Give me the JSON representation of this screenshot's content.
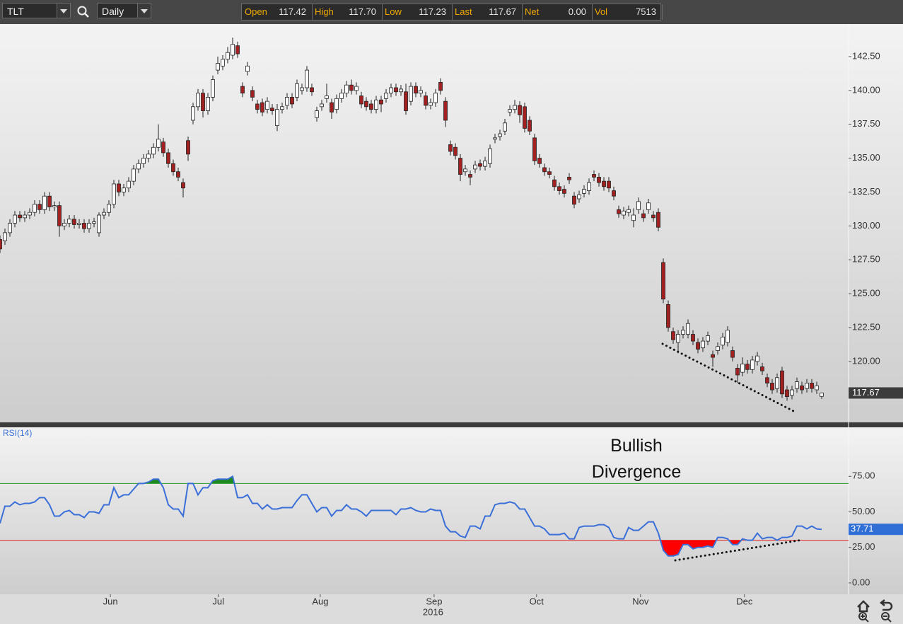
{
  "toolbar": {
    "symbol": "TLT",
    "interval": "Daily",
    "quote": [
      {
        "label": "Open",
        "value": "117.42"
      },
      {
        "label": "High",
        "value": "117.70"
      },
      {
        "label": "Low",
        "value": "117.23"
      },
      {
        "label": "Last",
        "value": "117.67"
      },
      {
        "label": "Net",
        "value": "0.00"
      },
      {
        "label": "Vol",
        "value": "7513"
      }
    ]
  },
  "chart_data": [
    {
      "type": "candlestick",
      "up_color": "#ffffff",
      "down_color": "#a32020",
      "ylim": [
        115.5,
        144.9
      ],
      "yticks": [
        {
          "value": 120,
          "label": "120.00"
        },
        {
          "value": 122.5,
          "label": "122.50"
        },
        {
          "value": 125,
          "label": "125.00"
        },
        {
          "value": 127.5,
          "label": "127.50"
        },
        {
          "value": 130,
          "label": "130.00"
        },
        {
          "value": 132.5,
          "label": "132.50"
        },
        {
          "value": 135,
          "label": "135.00"
        },
        {
          "value": 137.5,
          "label": "137.50"
        },
        {
          "value": 140,
          "label": "140.00"
        },
        {
          "value": 142.5,
          "label": "142.50"
        }
      ],
      "xticks": [
        {
          "value": 22.3,
          "label": "Jun"
        },
        {
          "value": 44.1,
          "label": "Jul"
        },
        {
          "value": 64.7,
          "label": "Aug"
        },
        {
          "value": 87.7,
          "label": "Sep"
        },
        {
          "value": 108.4,
          "label": "Oct"
        },
        {
          "value": 129.4,
          "label": "Nov"
        },
        {
          "value": 150.4,
          "label": "Dec"
        }
      ],
      "year_label": "2016",
      "ohlc": [
        [
          129.0,
          129.3,
          128.0,
          128.3
        ],
        [
          128.9,
          129.8,
          128.6,
          129.5
        ],
        [
          129.5,
          130.5,
          129.2,
          130.2
        ],
        [
          130.2,
          131.1,
          129.9,
          130.8
        ],
        [
          130.8,
          131.1,
          130.3,
          130.6
        ],
        [
          130.6,
          131.1,
          130.3,
          130.8
        ],
        [
          130.8,
          131.3,
          130.5,
          131.0
        ],
        [
          131.0,
          131.9,
          130.7,
          131.6
        ],
        [
          131.6,
          131.9,
          130.9,
          131.2
        ],
        [
          131.2,
          132.5,
          130.9,
          132.2
        ],
        [
          132.2,
          132.5,
          131.1,
          131.4
        ],
        [
          131.4,
          131.8,
          131.1,
          131.5
        ],
        [
          131.5,
          131.8,
          129.2,
          130.0
        ],
        [
          130.0,
          130.5,
          129.7,
          130.2
        ],
        [
          130.2,
          130.8,
          129.9,
          130.5
        ],
        [
          130.5,
          130.8,
          129.8,
          130.1
        ],
        [
          130.1,
          130.5,
          129.8,
          130.2
        ],
        [
          130.2,
          130.5,
          129.5,
          129.8
        ],
        [
          129.8,
          130.5,
          129.5,
          130.2
        ],
        [
          130.2,
          130.6,
          129.9,
          130.3
        ],
        [
          129.5,
          131.0,
          129.2,
          130.8
        ],
        [
          130.8,
          131.3,
          130.5,
          131.0
        ],
        [
          131.0,
          131.9,
          130.7,
          131.6
        ],
        [
          131.6,
          133.4,
          131.3,
          133.1
        ],
        [
          133.1,
          133.4,
          132.2,
          132.5
        ],
        [
          132.5,
          133.1,
          132.2,
          132.8
        ],
        [
          132.8,
          133.6,
          132.5,
          133.3
        ],
        [
          133.3,
          134.5,
          133.0,
          134.2
        ],
        [
          134.2,
          134.9,
          133.9,
          134.6
        ],
        [
          134.6,
          135.3,
          134.3,
          135.0
        ],
        [
          135.0,
          135.6,
          134.7,
          135.3
        ],
        [
          135.3,
          136.1,
          135.0,
          135.8
        ],
        [
          135.8,
          137.5,
          135.5,
          136.4
        ],
        [
          136.2,
          136.5,
          135.1,
          135.4
        ],
        [
          135.4,
          135.7,
          134.3,
          134.6
        ],
        [
          134.6,
          134.9,
          133.7,
          134.0
        ],
        [
          134.0,
          134.3,
          133.3,
          133.6
        ],
        [
          133.2,
          133.5,
          132.1,
          132.8
        ],
        [
          136.3,
          136.6,
          134.8,
          135.3
        ],
        [
          137.8,
          139.1,
          137.5,
          138.8
        ],
        [
          138.8,
          140.1,
          138.5,
          139.8
        ],
        [
          139.8,
          140.1,
          138.0,
          138.5
        ],
        [
          138.5,
          139.8,
          138.2,
          139.5
        ],
        [
          139.5,
          141.1,
          139.2,
          140.8
        ],
        [
          141.5,
          142.5,
          141.2,
          142.0
        ],
        [
          141.8,
          142.6,
          141.5,
          142.3
        ],
        [
          142.3,
          143.2,
          142.0,
          142.8
        ],
        [
          142.6,
          143.9,
          142.3,
          143.4
        ],
        [
          143.3,
          143.6,
          142.4,
          142.7
        ],
        [
          140.3,
          140.6,
          139.5,
          139.8
        ],
        [
          141.4,
          142.1,
          141.1,
          141.8
        ],
        [
          140.0,
          140.3,
          139.2,
          139.5
        ],
        [
          139.0,
          139.3,
          138.3,
          138.6
        ],
        [
          139.1,
          139.4,
          138.1,
          138.4
        ],
        [
          138.6,
          139.5,
          138.3,
          139.2
        ],
        [
          138.7,
          139.0,
          138.2,
          138.5
        ],
        [
          137.4,
          139.0,
          137.0,
          138.6
        ],
        [
          138.6,
          139.1,
          138.3,
          138.8
        ],
        [
          138.9,
          139.8,
          138.6,
          139.5
        ],
        [
          139.5,
          139.8,
          138.7,
          139.0
        ],
        [
          139.5,
          140.8,
          139.2,
          140.5
        ],
        [
          140.0,
          140.5,
          139.7,
          140.2
        ],
        [
          140.2,
          141.8,
          139.9,
          141.5
        ],
        [
          140.2,
          140.5,
          139.6,
          139.9
        ],
        [
          138.0,
          138.8,
          137.7,
          138.5
        ],
        [
          138.8,
          139.3,
          138.5,
          139.0
        ],
        [
          139.4,
          140.5,
          139.1,
          139.6
        ],
        [
          139.1,
          139.4,
          137.9,
          138.4
        ],
        [
          138.6,
          139.7,
          138.3,
          139.4
        ],
        [
          139.4,
          140.1,
          139.1,
          139.8
        ],
        [
          139.8,
          140.7,
          139.5,
          140.4
        ],
        [
          140.4,
          140.8,
          139.7,
          140.0
        ],
        [
          140.0,
          140.6,
          139.7,
          140.3
        ],
        [
          139.6,
          139.9,
          138.7,
          139.0
        ],
        [
          139.2,
          139.5,
          138.5,
          138.8
        ],
        [
          139.0,
          139.3,
          138.3,
          138.6
        ],
        [
          138.6,
          139.6,
          138.3,
          139.3
        ],
        [
          139.3,
          139.6,
          138.4,
          139.0
        ],
        [
          139.4,
          140.1,
          139.1,
          139.8
        ],
        [
          139.8,
          140.5,
          139.5,
          140.2
        ],
        [
          140.2,
          140.5,
          139.6,
          139.9
        ],
        [
          139.9,
          140.4,
          139.6,
          140.1
        ],
        [
          139.9,
          140.5,
          138.2,
          138.5
        ],
        [
          139.2,
          140.6,
          138.9,
          140.3
        ],
        [
          140.3,
          140.6,
          139.5,
          139.8
        ],
        [
          139.8,
          140.3,
          139.5,
          140.0
        ],
        [
          139.6,
          139.9,
          138.6,
          138.9
        ],
        [
          138.9,
          139.4,
          138.6,
          139.1
        ],
        [
          139.1,
          140.1,
          138.8,
          139.8
        ],
        [
          140.6,
          140.9,
          139.7,
          140.0
        ],
        [
          139.2,
          139.5,
          137.3,
          137.8
        ],
        [
          136.0,
          136.3,
          135.2,
          135.5
        ],
        [
          135.8,
          136.1,
          134.9,
          135.2
        ],
        [
          135.0,
          135.3,
          133.3,
          133.8
        ],
        [
          134.0,
          134.5,
          133.7,
          134.2
        ],
        [
          133.8,
          134.1,
          133.0,
          133.6
        ],
        [
          134.2,
          134.8,
          133.9,
          134.5
        ],
        [
          134.6,
          134.9,
          134.1,
          134.4
        ],
        [
          134.4,
          135.1,
          134.1,
          134.8
        ],
        [
          134.6,
          136.0,
          134.3,
          135.7
        ],
        [
          136.4,
          136.8,
          136.1,
          136.5
        ],
        [
          136.6,
          137.1,
          136.3,
          136.8
        ],
        [
          137.0,
          137.9,
          136.7,
          137.6
        ],
        [
          138.4,
          138.9,
          138.1,
          138.6
        ],
        [
          138.6,
          139.3,
          138.3,
          138.9
        ],
        [
          138.9,
          139.2,
          137.6,
          138.2
        ],
        [
          138.8,
          139.1,
          136.9,
          137.2
        ],
        [
          137.8,
          138.1,
          136.7,
          137.0
        ],
        [
          136.5,
          136.8,
          134.5,
          134.8
        ],
        [
          135.0,
          135.3,
          134.3,
          134.6
        ],
        [
          134.3,
          134.6,
          133.7,
          134.0
        ],
        [
          134.0,
          134.3,
          133.5,
          133.8
        ],
        [
          133.4,
          133.7,
          132.6,
          132.9
        ],
        [
          132.9,
          133.2,
          132.3,
          132.6
        ],
        [
          132.7,
          133.0,
          132.1,
          132.4
        ],
        [
          133.6,
          133.9,
          133.1,
          133.4
        ],
        [
          132.2,
          132.5,
          131.3,
          131.6
        ],
        [
          132.0,
          132.6,
          131.7,
          132.3
        ],
        [
          132.4,
          133.0,
          132.1,
          132.7
        ],
        [
          132.6,
          133.5,
          132.3,
          133.2
        ],
        [
          133.8,
          134.1,
          133.3,
          133.6
        ],
        [
          133.6,
          133.9,
          132.9,
          133.2
        ],
        [
          133.3,
          133.6,
          132.6,
          132.9
        ],
        [
          133.3,
          133.6,
          132.5,
          132.8
        ],
        [
          132.6,
          132.9,
          131.9,
          132.2
        ],
        [
          131.2,
          131.5,
          130.6,
          130.9
        ],
        [
          130.8,
          131.4,
          130.5,
          131.1
        ],
        [
          131.0,
          131.5,
          130.7,
          131.2
        ],
        [
          130.4,
          131.3,
          129.9,
          130.8
        ],
        [
          131.2,
          132.1,
          130.9,
          131.8
        ],
        [
          130.9,
          131.2,
          130.3,
          130.6
        ],
        [
          131.2,
          132.0,
          130.9,
          131.7
        ],
        [
          130.8,
          131.1,
          130.3,
          130.6
        ],
        [
          131.0,
          131.3,
          129.6,
          129.9
        ],
        [
          127.3,
          127.6,
          124.3,
          124.6
        ],
        [
          124.2,
          124.5,
          122.2,
          122.5
        ],
        [
          122.2,
          122.5,
          121.3,
          121.6
        ],
        [
          121.4,
          122.3,
          120.6,
          122.0
        ],
        [
          122.0,
          122.6,
          121.7,
          122.3
        ],
        [
          122.0,
          123.1,
          121.7,
          122.8
        ],
        [
          122.0,
          122.3,
          121.2,
          121.5
        ],
        [
          121.4,
          121.7,
          120.6,
          120.9
        ],
        [
          121.0,
          121.8,
          120.7,
          121.5
        ],
        [
          121.5,
          122.2,
          121.2,
          121.9
        ],
        [
          120.5,
          120.8,
          119.6,
          120.3
        ],
        [
          120.8,
          121.4,
          120.5,
          121.1
        ],
        [
          121.2,
          122.1,
          120.9,
          121.8
        ],
        [
          121.4,
          122.6,
          121.1,
          122.3
        ],
        [
          120.8,
          121.1,
          120.0,
          120.3
        ],
        [
          119.5,
          119.8,
          118.4,
          119.0
        ],
        [
          119.2,
          120.3,
          118.9,
          119.8
        ],
        [
          119.8,
          120.1,
          119.1,
          119.4
        ],
        [
          119.4,
          120.4,
          119.1,
          120.1
        ],
        [
          120.0,
          120.7,
          119.7,
          120.4
        ],
        [
          119.6,
          119.9,
          119.0,
          119.3
        ],
        [
          118.8,
          119.1,
          118.1,
          118.4
        ],
        [
          118.4,
          118.7,
          117.6,
          117.9
        ],
        [
          118.0,
          119.1,
          117.7,
          118.8
        ],
        [
          119.3,
          119.6,
          117.3,
          117.6
        ],
        [
          117.9,
          118.2,
          117.1,
          117.4
        ],
        [
          117.5,
          118.2,
          117.2,
          117.9
        ],
        [
          118.0,
          118.8,
          117.7,
          118.5
        ],
        [
          118.2,
          118.5,
          117.6,
          117.9
        ],
        [
          118.0,
          118.7,
          117.7,
          118.4
        ],
        [
          118.4,
          118.7,
          117.7,
          118.0
        ],
        [
          117.9,
          118.5,
          117.6,
          118.2
        ],
        [
          117.42,
          117.7,
          117.23,
          117.67
        ]
      ]
    },
    {
      "type": "line",
      "title": "RSI(14)",
      "color": "#3a6fd8",
      "last_color": "#2f6fd6",
      "ylim": [
        -8,
        109.5
      ],
      "yticks": [
        {
          "value": 0,
          "label": "0.00"
        },
        {
          "value": 25,
          "label": "25.00"
        },
        {
          "value": 50,
          "label": "50.00"
        },
        {
          "value": 75,
          "label": "75.00"
        }
      ],
      "levels": [
        {
          "value": 70,
          "color": "#2e9a2e",
          "fill": "#1f8a1f",
          "side": "above"
        },
        {
          "value": 30,
          "color": "#e02020",
          "fill": "#ff0000",
          "side": "below"
        }
      ],
      "annotation": "Bullish Divergence",
      "values": [
        42,
        54,
        54,
        57,
        55,
        56,
        56,
        57,
        60,
        60,
        55,
        47,
        47,
        50,
        51,
        48,
        48,
        46,
        50,
        50,
        49,
        55,
        55,
        67,
        60,
        62,
        62,
        66,
        70,
        70,
        71,
        73,
        73,
        67,
        55,
        52,
        52,
        47,
        70,
        70,
        62,
        67,
        67,
        72,
        73,
        73,
        73,
        75,
        60,
        60,
        62,
        56,
        56,
        52,
        55,
        52,
        52,
        53,
        53,
        53,
        58,
        62,
        62,
        56,
        50,
        53,
        53,
        47,
        51,
        51,
        55,
        52,
        52,
        50,
        47,
        51,
        51,
        51,
        51,
        51,
        48,
        52,
        52,
        53,
        51,
        50,
        50,
        52,
        51,
        51,
        40,
        36,
        36,
        33,
        32,
        40,
        40,
        38,
        47,
        47,
        55,
        56,
        56,
        57,
        56,
        52,
        52,
        46,
        40,
        40,
        38,
        34,
        34,
        34,
        35,
        31,
        31,
        39,
        40,
        40,
        40,
        41,
        41,
        39,
        32,
        31,
        31,
        39,
        37,
        37,
        40,
        43,
        43,
        35,
        23,
        19,
        19,
        20,
        27,
        27,
        24,
        25,
        25,
        26,
        25,
        32,
        32,
        31,
        27,
        27,
        31,
        30,
        30,
        35,
        31,
        32,
        32,
        30,
        32,
        32,
        33,
        40,
        40,
        38,
        40,
        38,
        37.71
      ]
    }
  ]
}
